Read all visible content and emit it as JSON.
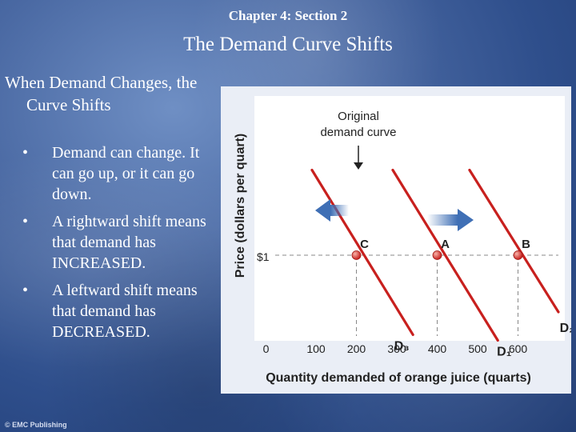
{
  "slide": {
    "chapter": "Chapter 4: Section 2",
    "title": "The Demand Curve Shifts",
    "heading": "When Demand Changes, the Curve Shifts",
    "bullets": [
      "Demand can change. It can go up, or it can go down.",
      "A rightward shift means that demand has INCREASED.",
      "A leftward shift means that demand has DECREASED."
    ],
    "bullet_char": "•",
    "footer": "© EMC Publishing"
  },
  "chart_data": {
    "type": "line",
    "xlabel": "Quantity demanded of orange juice (quarts)",
    "ylabel": "Price (dollars per quart)",
    "x_ticks": [
      "0",
      "100",
      "200",
      "300",
      "400",
      "500",
      "600"
    ],
    "y_tick_label": "$1",
    "y_tick_value": 1,
    "xlim": [
      0,
      700
    ],
    "series": [
      {
        "name": "D3",
        "label": "D₃",
        "points": [
          [
            90,
            1.75
          ],
          [
            340,
            0.3
          ]
        ]
      },
      {
        "name": "D1",
        "label": "D₁",
        "points": [
          [
            290,
            1.75
          ],
          [
            550,
            0.25
          ]
        ]
      },
      {
        "name": "D2",
        "label": "D₂",
        "points": [
          [
            480,
            1.75
          ],
          [
            700,
            0.5
          ]
        ]
      }
    ],
    "points": [
      {
        "label": "C",
        "x": 200,
        "y": 1
      },
      {
        "label": "A",
        "x": 400,
        "y": 1
      },
      {
        "label": "B",
        "x": 600,
        "y": 1
      }
    ],
    "annotation": {
      "text_lines": [
        "Original",
        "demand curve"
      ],
      "points_to": "D1"
    },
    "shift_arrows": [
      "left",
      "right"
    ],
    "colors": {
      "curve": "#c8201e",
      "point": "#d9584c",
      "arrow": "#3f6fb5",
      "guide": "#888888"
    }
  }
}
